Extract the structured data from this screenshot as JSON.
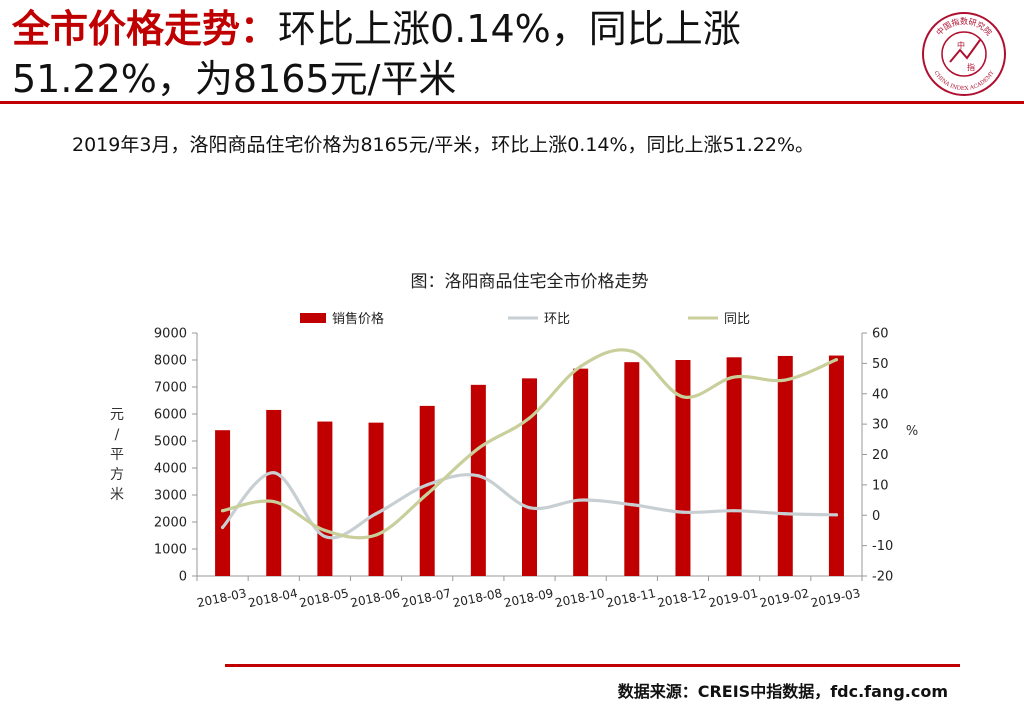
{
  "header": {
    "title_red": "全市价格走势：",
    "title_black": "环比上涨0.14%，同比上涨51.22%，为8165元/平米"
  },
  "logo": {
    "name": "china-index-academy-seal-icon",
    "text_top": "中国指数研究院",
    "text_bottom": "CHINA INDEX ACADEMY",
    "center_text_1": "中",
    "center_text_2": "指",
    "color": "#b01030"
  },
  "summary": "2019年3月，洛阳商品住宅价格为8165元/平米，环比上涨0.14%，同比上涨51.22%。",
  "footer": {
    "source": "数据来源：CREIS中指数据，fdc.fang.com"
  },
  "colors": {
    "accent": "#c00000",
    "bar": "#c00000",
    "mom_line": "#c8cfd3",
    "yoy_line": "#c9cf9a"
  },
  "chart_data": {
    "type": "bar",
    "title": "图：洛阳商品住宅全市价格走势",
    "categories": [
      "2018-03",
      "2018-04",
      "2018-05",
      "2018-06",
      "2018-07",
      "2018-08",
      "2018-09",
      "2018-10",
      "2018-11",
      "2018-12",
      "2019-01",
      "2019-02",
      "2019-03"
    ],
    "ylabel": "元/平方米",
    "y2label": "%",
    "ylim": [
      0,
      9000
    ],
    "yticks": [
      "0",
      "1000",
      "2000",
      "3000",
      "4000",
      "5000",
      "6000",
      "7000",
      "8000",
      "9000"
    ],
    "y2lim": [
      -20,
      60
    ],
    "y2ticks": [
      "-20",
      "-10",
      "0",
      "10",
      "20",
      "30",
      "40",
      "50",
      "60"
    ],
    "legend_position": "top",
    "grid": false,
    "series": [
      {
        "name": "销售价格",
        "kind": "bar",
        "axis": "left",
        "values": [
          5400,
          6150,
          5720,
          5680,
          6300,
          7080,
          7320,
          7680,
          7920,
          8000,
          8100,
          8150,
          8165
        ]
      },
      {
        "name": "环比",
        "kind": "line",
        "axis": "right",
        "values": [
          -4,
          14,
          -7,
          0.5,
          10,
          13,
          2.5,
          5,
          3.5,
          1,
          1.5,
          0.5,
          0.14
        ]
      },
      {
        "name": "同比",
        "kind": "line",
        "axis": "right",
        "values": [
          1.5,
          4.5,
          -5,
          -6.5,
          7,
          22,
          32,
          49,
          54,
          39,
          45.5,
          44.5,
          51.22
        ]
      }
    ]
  }
}
